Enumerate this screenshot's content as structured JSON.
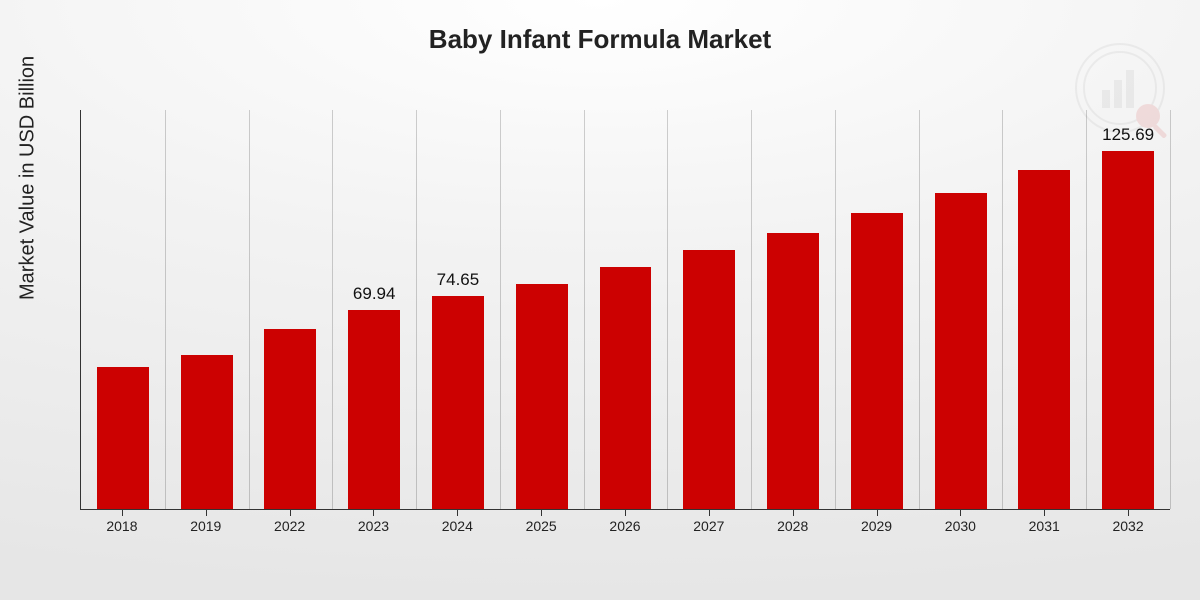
{
  "chart": {
    "type": "bar",
    "title": "Baby Infant Formula Market",
    "title_fontsize": 26,
    "title_color": "#222222",
    "ylabel": "Market Value in USD Billion",
    "ylabel_fontsize": 20,
    "background_gradient": {
      "center": "#ffffff",
      "mid": "#f3f3f3",
      "edge": "#e6e6e6"
    },
    "axis_color": "#333333",
    "grid_color": "rgba(0,0,0,0.18)",
    "bar_color": "#cc0101",
    "bar_width_ratio": 0.62,
    "categories": [
      "2018",
      "2019",
      "2022",
      "2023",
      "2024",
      "2025",
      "2026",
      "2027",
      "2028",
      "2029",
      "2030",
      "2031",
      "2032"
    ],
    "values": [
      50.0,
      54.0,
      63.0,
      69.94,
      74.65,
      79.0,
      85.0,
      91.0,
      97.0,
      104.0,
      111.0,
      119.0,
      125.69
    ],
    "data_labels": [
      "",
      "",
      "",
      "69.94",
      "74.65",
      "",
      "",
      "",
      "",
      "",
      "",
      "",
      "125.69"
    ],
    "ylim": [
      0,
      140
    ],
    "x_tick_fontsize": 14,
    "data_label_fontsize": 17,
    "data_label_color": "#111111"
  },
  "watermark": {
    "name": "logo-watermark",
    "primary_color": "#bbbbbb",
    "accent_color": "#cc0101",
    "opacity": 0.1
  }
}
